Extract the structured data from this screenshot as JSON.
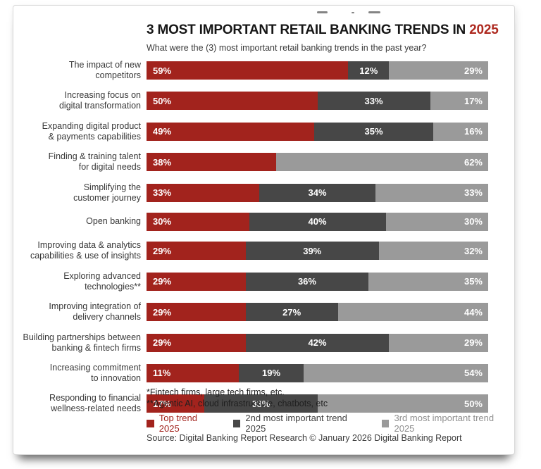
{
  "header": {
    "title_main": "3 MOST IMPORTANT RETAIL BANKING TRENDS IN",
    "title_year": "2025",
    "subtitle": "What were the (3) most important retail banking trends in the past year?"
  },
  "chart_data": {
    "type": "bar",
    "orientation": "horizontal",
    "stacked": true,
    "unit": "%",
    "xlim": [
      0,
      100
    ],
    "legend_position": "bottom",
    "series_names": [
      "Top trend 2025",
      "2nd most important trend 2025",
      "3rd most important trend 2025"
    ],
    "categories": [
      "The impact of new competitors",
      "Increasing focus on digital transformation",
      "Expanding digital product & payments capabilities",
      "Finding & training talent for digital needs",
      "Simplifying the customer journey",
      "Open banking",
      "Improving data & analytics capabilities & use of insights",
      "Exploring advanced technologies**",
      "Improving integration of delivery channels",
      "Building partnerships between banking & fintech firms",
      "Increasing commitment to innovation",
      "Responding to financial wellness-related needs"
    ],
    "rows": [
      {
        "label_lines": [
          "The impact of new",
          "competitors"
        ],
        "values": [
          59,
          12,
          29
        ]
      },
      {
        "label_lines": [
          "Increasing focus on",
          "digital transformation"
        ],
        "values": [
          50,
          33,
          17
        ]
      },
      {
        "label_lines": [
          "Expanding digital product",
          "& payments capabilities"
        ],
        "values": [
          49,
          35,
          16
        ]
      },
      {
        "label_lines": [
          "Finding & training talent",
          "for digital needs"
        ],
        "values": [
          38,
          null,
          62
        ]
      },
      {
        "label_lines": [
          "Simplifying the",
          "customer journey"
        ],
        "values": [
          33,
          34,
          33
        ]
      },
      {
        "label_lines": [
          "Open banking"
        ],
        "values": [
          30,
          40,
          30
        ]
      },
      {
        "label_lines": [
          "Improving data & analytics",
          "capabilities & use of insights"
        ],
        "values": [
          29,
          39,
          32
        ]
      },
      {
        "label_lines": [
          "Exploring advanced",
          "technologies**"
        ],
        "values": [
          29,
          36,
          35
        ]
      },
      {
        "label_lines": [
          "Improving integration of",
          "delivery channels"
        ],
        "values": [
          29,
          27,
          44
        ]
      },
      {
        "label_lines": [
          "Building partnerships between",
          "banking & fintech firms"
        ],
        "values": [
          29,
          42,
          29
        ]
      },
      {
        "label_lines": [
          "Increasing commitment",
          "to innovation"
        ],
        "values": [
          11,
          19,
          54
        ]
      },
      {
        "label_lines": [
          "Responding to financial",
          "wellness-related needs"
        ],
        "values": [
          17,
          33,
          50
        ]
      }
    ]
  },
  "footnotes": [
    "*Fintech firms, large tech firms, etc.",
    "**Agentic AI, cloud infrastructure, chatbots, etc"
  ],
  "legend": [
    {
      "label": "Top trend 2025",
      "color": "#A2231D",
      "text_color": "#A2231D"
    },
    {
      "label": "2nd most important trend 2025",
      "color": "#474747",
      "text_color": "#3F3F3F"
    },
    {
      "label": "3rd most important trend 2025",
      "color": "#9A9A9A",
      "text_color": "#8F8F8F"
    }
  ],
  "source": "Source: Digital Banking Report Research © January 2026 Digital Banking Report",
  "colors": {
    "top_trend": "#A2231D",
    "second_trend": "#474747",
    "third_trend": "#9A9A9A",
    "title_year": "#AE2A20"
  }
}
